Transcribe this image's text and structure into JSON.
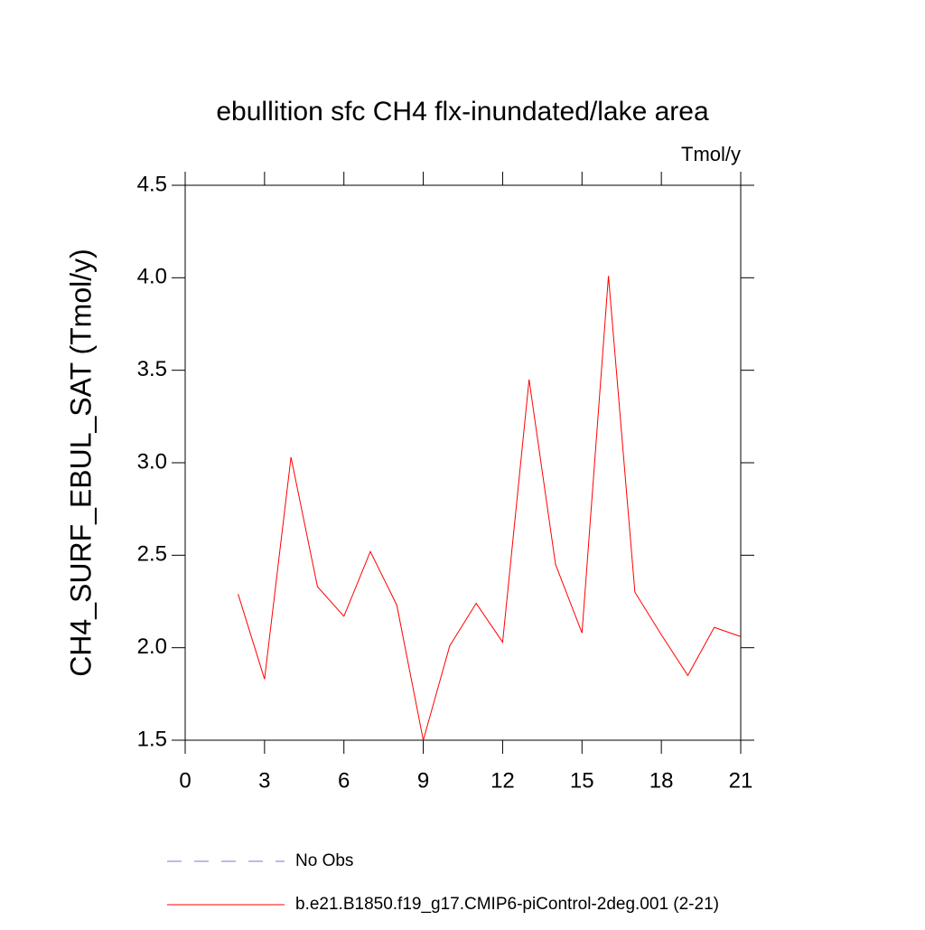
{
  "chart_data": {
    "type": "line",
    "title": "ebullition sfc CH4 flx-inundated/lake area",
    "units": "Tmol/y",
    "ylabel": "CH4_SURF_EBUL_SAT  (Tmol/y)",
    "x": [
      2,
      3,
      4,
      5,
      6,
      7,
      8,
      9,
      10,
      11,
      12,
      13,
      14,
      15,
      16,
      17,
      18,
      19,
      20,
      21
    ],
    "series": [
      {
        "name": "No Obs",
        "color": "#7a7ac8",
        "dash": true,
        "values": [
          null,
          null,
          null,
          null,
          null,
          null,
          null,
          null,
          null,
          null,
          null,
          null,
          null,
          null,
          null,
          null,
          null,
          null,
          null,
          null
        ]
      },
      {
        "name": "b.e21.B1850.f19_g17.CMIP6-piControl-2deg.001 (2-21)",
        "color": "#ff0000",
        "dash": false,
        "values": [
          2.29,
          1.83,
          3.03,
          2.33,
          2.17,
          2.52,
          2.23,
          1.5,
          2.01,
          2.24,
          2.03,
          3.45,
          2.45,
          2.08,
          4.01,
          2.3,
          2.07,
          1.85,
          2.11,
          2.06
        ]
      }
    ],
    "xlim": [
      0,
      21
    ],
    "xticks": [
      0,
      3,
      6,
      9,
      12,
      15,
      18,
      21
    ],
    "ylim": [
      1.5,
      4.5
    ],
    "yticks": [
      1.5,
      {
        "value": 2,
        "label": "2.0"
      },
      2.5,
      {
        "value": 3,
        "label": "3.0"
      },
      3.5,
      {
        "value": 4,
        "label": "4.0"
      },
      4.5
    ]
  }
}
